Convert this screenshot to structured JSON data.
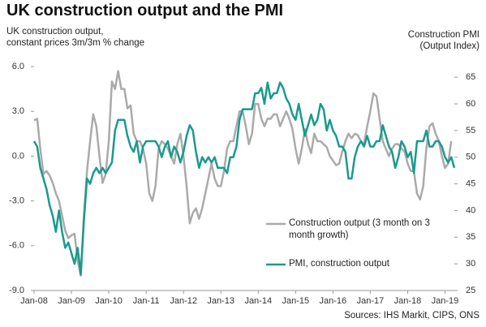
{
  "chart_data": {
    "type": "line",
    "title": "UK construction output and the PMI",
    "y_label": [
      "UK construction output,",
      "constant prices 3m/3m % change"
    ],
    "y2_label": [
      "Construction PMI",
      "(Output Index)"
    ],
    "source": "Sources: IHS Markit, CIPS, ONS",
    "categories": [
      "Jan-08",
      null,
      null,
      null,
      null,
      null,
      null,
      null,
      null,
      null,
      null,
      null,
      "Jan-09",
      null,
      null,
      null,
      null,
      null,
      null,
      null,
      null,
      null,
      null,
      null,
      "Jan-10",
      null,
      null,
      null,
      null,
      null,
      null,
      null,
      null,
      null,
      null,
      null,
      "Jan-11",
      null,
      null,
      null,
      null,
      null,
      null,
      null,
      null,
      null,
      null,
      null,
      "Jan-12",
      null,
      null,
      null,
      null,
      null,
      null,
      null,
      null,
      null,
      null,
      null,
      "Jan-13",
      null,
      null,
      null,
      null,
      null,
      null,
      null,
      null,
      null,
      null,
      null,
      "Jan-14",
      null,
      null,
      null,
      null,
      null,
      null,
      null,
      null,
      null,
      null,
      null,
      "Jan-15",
      null,
      null,
      null,
      null,
      null,
      null,
      null,
      null,
      null,
      null,
      null,
      "Jan-16",
      null,
      null,
      null,
      null,
      null,
      null,
      null,
      null,
      null,
      null,
      null,
      "Jan-17",
      null,
      null,
      null,
      null,
      null,
      null,
      null,
      null,
      null,
      null,
      null,
      "Jan-18",
      null,
      null,
      null,
      null,
      null,
      null,
      null,
      null,
      null,
      null,
      null,
      "Jan-19",
      null,
      null,
      null
    ],
    "ylim": [
      -9,
      6
    ],
    "yticks": [
      {
        "value": 6,
        "label": "6.0"
      },
      {
        "value": 3,
        "label": "3.0"
      },
      {
        "value": 0,
        "label": "0.0"
      },
      {
        "value": -3,
        "label": "-3.0"
      },
      {
        "value": -6,
        "label": "-6.0"
      },
      {
        "value": -9,
        "label": "-9.0"
      }
    ],
    "y2lim": [
      25,
      67
    ],
    "y2ticks": [
      25,
      30,
      35,
      40,
      45,
      50,
      55,
      60,
      65
    ],
    "legend": "lower right",
    "series": [
      {
        "name": "Construction output (3 month on 3 month growth)",
        "color": "#aaaaaa",
        "axis": "y",
        "values": [
          2.4,
          2.5,
          0.5,
          -1.2,
          -1.0,
          -1.3,
          -1.8,
          -2.5,
          -3.0,
          -4.0,
          -5.0,
          -5.5,
          -5.3,
          -5.2,
          -7.0,
          -8.0,
          -4.0,
          -1.0,
          1.0,
          2.8,
          2.0,
          0.0,
          -1.8,
          -1.2,
          1.0,
          5.0,
          4.5,
          5.7,
          4.5,
          4.5,
          3.2,
          3.4,
          1.5,
          1.0,
          1.0,
          0.5,
          -0.5,
          -2.5,
          -3.0,
          -2.0,
          0.5,
          1.0,
          0.8,
          0.5,
          0.0,
          -0.5,
          0.8,
          1.5,
          0.0,
          -2.0,
          -4.5,
          -3.8,
          -3.5,
          -4.2,
          -3.5,
          -2.5,
          -1.5,
          -0.5,
          -1.5,
          -2.0,
          -2.0,
          -1.0,
          0.5,
          1.0,
          1.0,
          2.0,
          3.0,
          3.0,
          2.0,
          0.8,
          1.5,
          3.5,
          3.5,
          2.5,
          2.0,
          2.5,
          2.5,
          2.8,
          2.8,
          2.0,
          2.5,
          3.0,
          2.5,
          1.8,
          0.5,
          -0.5,
          0.5,
          1.8,
          0.8,
          0.2,
          1.5,
          1.0,
          1.0,
          0.8,
          0.6,
          0.0,
          -0.3,
          -0.6,
          -0.5,
          0.3,
          1.0,
          1.5,
          1.2,
          1.5,
          1.4,
          1.0,
          0.8,
          2.0,
          3.0,
          4.2,
          4.0,
          2.5,
          1.0,
          0.5,
          0.0,
          0.5,
          0.8,
          0.8,
          0.5,
          0.3,
          -0.5,
          -1.0,
          -1.0,
          -2.5,
          -2.9,
          -2.0,
          0.5,
          2.0,
          2.2,
          1.5,
          1.0,
          0.0,
          -0.8,
          -0.5,
          1.0,
          null
        ]
      },
      {
        "name": "PMI, construction output",
        "color": "#1a9a8d",
        "axis": "y2",
        "values": [
          53,
          52,
          48,
          46,
          44,
          41,
          39,
          36,
          40,
          36,
          33,
          34,
          32,
          30,
          33,
          28,
          38,
          46,
          45,
          47,
          48,
          47,
          48,
          47,
          48,
          49,
          55,
          57,
          57,
          57,
          54,
          52,
          51,
          53,
          49,
          52,
          53,
          53,
          53,
          53,
          52,
          50,
          52,
          53,
          50,
          52,
          51,
          49,
          51,
          54,
          56,
          55,
          51,
          48,
          50,
          49,
          50,
          49,
          50,
          48,
          48,
          48,
          47,
          50,
          50,
          52,
          57,
          59,
          59,
          59,
          59,
          62,
          62,
          63,
          60,
          64,
          61,
          62,
          62,
          64,
          63,
          61,
          60,
          58,
          57,
          60,
          57,
          54,
          56,
          58,
          56,
          57,
          60,
          59,
          55,
          57,
          55,
          54,
          52,
          52,
          51,
          46,
          46,
          50,
          52,
          53,
          52,
          54,
          52,
          52,
          53,
          53,
          56,
          54,
          52,
          51,
          48,
          50,
          53,
          52,
          50,
          51,
          47,
          53,
          53,
          53,
          55,
          52,
          52,
          53,
          53,
          52,
          50,
          49,
          50,
          48
        ]
      }
    ]
  }
}
